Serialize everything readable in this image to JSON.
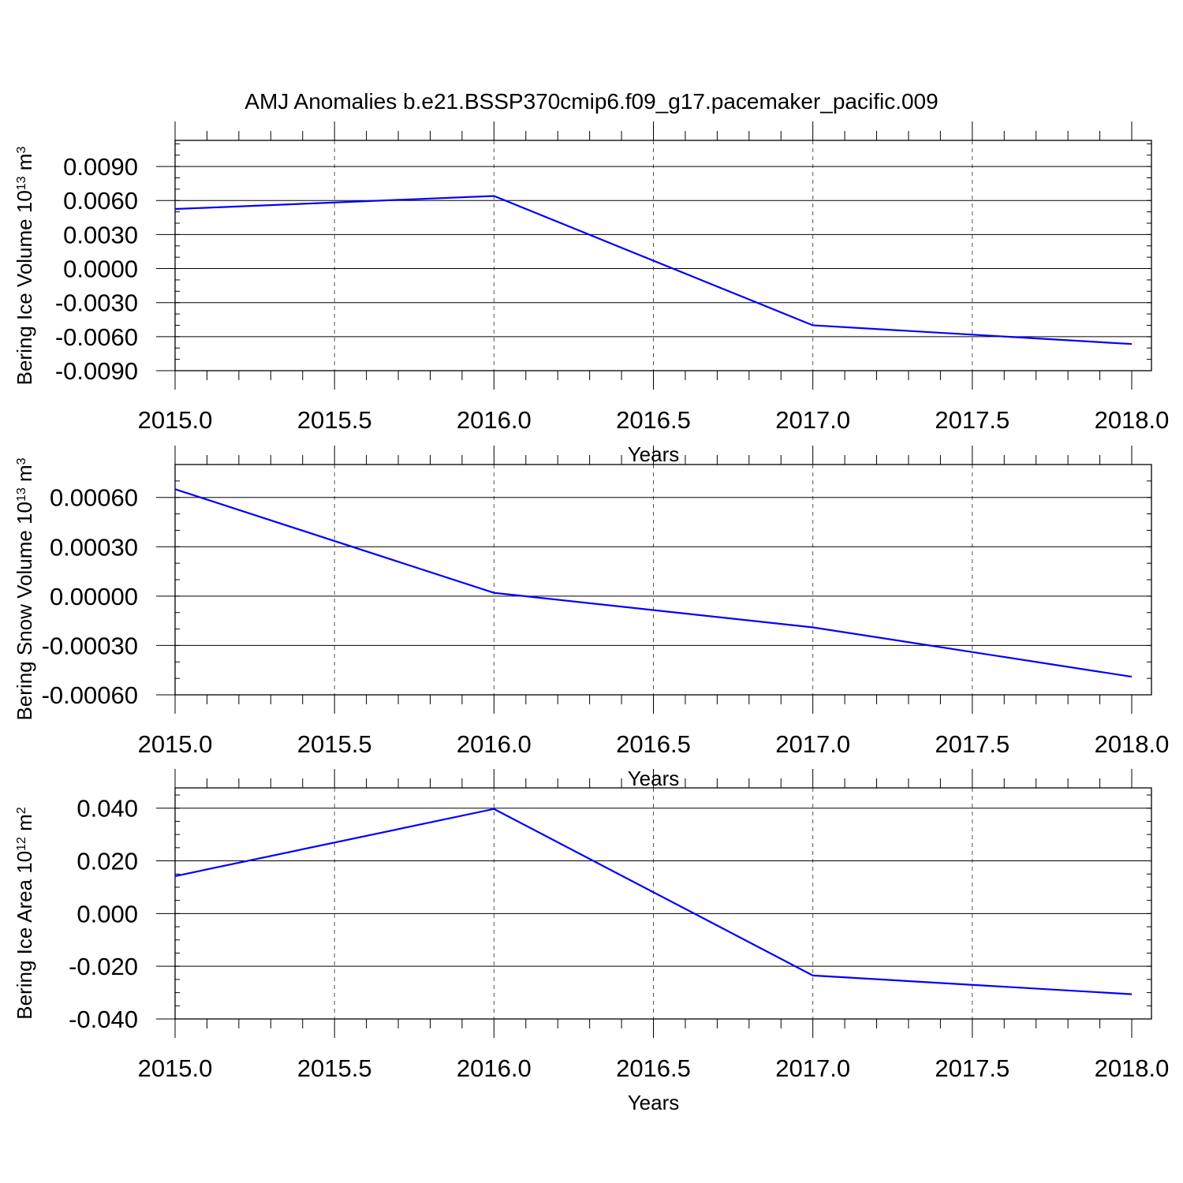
{
  "title": "AMJ Anomalies b.e21.BSSP370cmip6.f09_g17.pacemaker_pacific.009",
  "colors": {
    "series": "#0000ff",
    "frame": "#000000",
    "grid": "#555555"
  },
  "chart_data": [
    {
      "type": "line",
      "title": "",
      "xlabel": "Years",
      "ylabel": "Bering Ice Volume 10",
      "ylabel_exp": "13",
      "ylabel_unit": " m",
      "ylabel_unit_exp": "3",
      "grid": "vertical dashed at x ticks",
      "xlim": [
        2015.0,
        2018.0
      ],
      "ylim": [
        -0.009,
        0.0113
      ],
      "x_ticks": [
        2015.0,
        2015.5,
        2016.0,
        2016.5,
        2017.0,
        2017.5,
        2018.0
      ],
      "x_tick_labels": [
        "2015.0",
        "2015.5",
        "2016.0",
        "2016.5",
        "2017.0",
        "2017.5",
        "2018.0"
      ],
      "y_ticks": [
        0.009,
        0.006,
        0.003,
        0.0,
        -0.003,
        -0.006,
        -0.009
      ],
      "y_tick_labels": [
        "0.0090",
        "0.0060",
        "0.0030",
        "0.0000",
        "-0.0030",
        "-0.0060",
        "-0.0090"
      ],
      "y_minor_step": 0.001,
      "series": [
        {
          "x": [
            2015,
            2016,
            2017,
            2018
          ],
          "values": [
            0.00525,
            0.0064,
            -0.005,
            -0.00665
          ]
        }
      ]
    },
    {
      "type": "line",
      "title": "",
      "xlabel": "Years",
      "ylabel": "Bering Snow Volume 10",
      "ylabel_exp": "13",
      "ylabel_unit": " m",
      "ylabel_unit_exp": "3",
      "grid": "vertical dashed at x ticks",
      "xlim": [
        2015.0,
        2018.0
      ],
      "ylim": [
        -0.0006,
        0.0008
      ],
      "x_ticks": [
        2015.0,
        2015.5,
        2016.0,
        2016.5,
        2017.0,
        2017.5,
        2018.0
      ],
      "x_tick_labels": [
        "2015.0",
        "2015.5",
        "2016.0",
        "2016.5",
        "2017.0",
        "2017.5",
        "2018.0"
      ],
      "y_ticks": [
        0.0006,
        0.0003,
        0.0,
        -0.0003,
        -0.0006
      ],
      "y_tick_labels": [
        "0.00060",
        "0.00030",
        "0.00000",
        "-0.00030",
        "-0.00060"
      ],
      "y_minor_step": 0.0001,
      "series": [
        {
          "x": [
            2015,
            2016,
            2017,
            2018
          ],
          "values": [
            0.00065,
            2e-05,
            -0.00019,
            -0.00049
          ]
        }
      ]
    },
    {
      "type": "line",
      "title": "",
      "xlabel": "Years",
      "ylabel": "Bering Ice Area 10",
      "ylabel_exp": "12",
      "ylabel_unit": " m",
      "ylabel_unit_exp": "2",
      "grid": "vertical dashed at x ticks",
      "xlim": [
        2015.0,
        2018.0
      ],
      "ylim": [
        -0.04,
        0.0477
      ],
      "x_ticks": [
        2015.0,
        2015.5,
        2016.0,
        2016.5,
        2017.0,
        2017.5,
        2018.0
      ],
      "x_tick_labels": [
        "2015.0",
        "2015.5",
        "2016.0",
        "2016.5",
        "2017.0",
        "2017.5",
        "2018.0"
      ],
      "y_ticks": [
        0.04,
        0.02,
        0.0,
        -0.02,
        -0.04
      ],
      "y_tick_labels": [
        "0.040",
        "0.020",
        "0.000",
        "-0.020",
        "-0.040"
      ],
      "y_minor_step": 0.005,
      "series": [
        {
          "x": [
            2015,
            2016,
            2017,
            2018
          ],
          "values": [
            0.0142,
            0.0397,
            -0.0235,
            -0.0306
          ]
        }
      ]
    }
  ]
}
